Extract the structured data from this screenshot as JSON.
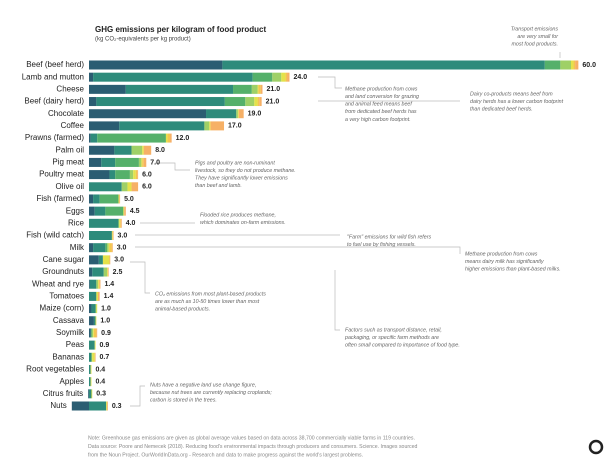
{
  "chart_data": {
    "type": "stacked-barh",
    "title": "GHG emissions per kilogram of food product",
    "subtitle": "(kg CO₂-equivalents per kg product)",
    "categories": [
      "Beef (beef herd)",
      "Lamb and mutton",
      "Cheese",
      "Beef (dairy herd)",
      "Chocolate",
      "Coffee",
      "Prawns (farmed)",
      "Palm oil",
      "Pig meat",
      "Poultry meat",
      "Olive oil",
      "Fish (farmed)",
      "Eggs",
      "Rice",
      "Fish (wild catch)",
      "Milk",
      "Cane sugar",
      "Groundnuts",
      "Wheat and rye",
      "Tomatoes",
      "Maize (corn)",
      "Cassava",
      "Soymilk",
      "Peas",
      "Bananas",
      "Root vegetables",
      "Apples",
      "Citrus fruits",
      "Nuts"
    ],
    "values": [
      60,
      24,
      21,
      21,
      19,
      17,
      12,
      8,
      7,
      6,
      6,
      5,
      4.5,
      4,
      3,
      3,
      3,
      2.5,
      1.4,
      1.4,
      1,
      1,
      0.9,
      0.9,
      0.7,
      0.4,
      0.4,
      0.3,
      0.3
    ],
    "value_labels": [
      "60.0",
      "24.0",
      "21.0",
      "21.0",
      "19.0",
      "17.0",
      "12.0",
      "8.0",
      "7.0",
      "6.0",
      "6.0",
      "5.0",
      "4.5",
      "4.0",
      "3.0",
      "3.0",
      "3.0",
      "2.5",
      "1.4",
      "1.4",
      "1.0",
      "1.0",
      "0.9",
      "0.9",
      "0.7",
      "0.4",
      "0.4",
      "0.3",
      "0.3"
    ],
    "series": [
      {
        "color": "#2b5d72",
        "values": [
          16.3,
          0.5,
          4.5,
          0.9,
          14.3,
          3.7,
          0.2,
          3.1,
          1.5,
          2.5,
          0,
          0.5,
          0.7,
          0,
          0,
          0.5,
          1.2,
          0.4,
          0.1,
          0,
          0.3,
          0.6,
          0.2,
          0,
          0,
          0,
          0,
          -0.1,
          -2.1
        ]
      },
      {
        "color": "#2e8b7b",
        "values": [
          39.4,
          19.5,
          13.1,
          15.7,
          3.7,
          10.4,
          0.8,
          2.1,
          1.7,
          0.7,
          4.0,
          0.8,
          1.3,
          3.6,
          2.8,
          1.5,
          0.5,
          1.4,
          0.8,
          0.9,
          0.5,
          0.2,
          0.1,
          0.7,
          0.3,
          0.2,
          0.2,
          0.3,
          2.1
        ]
      },
      {
        "color": "#55b06a",
        "values": [
          1.9,
          2.4,
          2.3,
          2.5,
          0,
          0,
          8.4,
          0,
          2.9,
          1.8,
          0,
          2.3,
          2.2,
          0,
          0,
          0.2,
          0,
          0,
          0,
          0,
          0,
          0,
          0,
          0,
          0,
          0,
          0,
          0,
          0
        ]
      },
      {
        "color": "#9fd067",
        "values": [
          1.3,
          1.1,
          0.7,
          1.1,
          0.2,
          0.6,
          0,
          1.3,
          0.3,
          0.4,
          0.7,
          0,
          0,
          0.1,
          0,
          0.2,
          0,
          0.4,
          0.2,
          0,
          0.1,
          0,
          0.2,
          0,
          0.1,
          0,
          0,
          0,
          0
        ]
      },
      {
        "color": "#e4e24a",
        "values": [
          0.3,
          0.5,
          0.1,
          0.4,
          0.1,
          0.1,
          0.2,
          0.2,
          0.1,
          0.3,
          0.5,
          0.1,
          0.1,
          0.1,
          0.1,
          0.1,
          0.8,
          0.1,
          0.1,
          0.2,
          0.1,
          0.1,
          0.1,
          0.1,
          0.3,
          0.1,
          0.1,
          0.1,
          0.1
        ]
      },
      {
        "color": "#f3c64f",
        "values": [
          0.2,
          0.2,
          0.3,
          0.2,
          0,
          0.1,
          0.3,
          0,
          0.2,
          0.2,
          0,
          0,
          0,
          0.1,
          0,
          0.3,
          0,
          0,
          0.1,
          0,
          0,
          0,
          0.3,
          0,
          0,
          0,
          0,
          0,
          0
        ]
      },
      {
        "color": "#f6b066",
        "values": [
          0.4,
          0.3,
          0.2,
          0.3,
          0.6,
          1.6,
          0.2,
          0.9,
          0.3,
          0.1,
          0.8,
          0.1,
          0.2,
          0.1,
          0.1,
          0.1,
          0.1,
          0.1,
          0.1,
          0.2,
          0,
          0,
          0.1,
          0,
          0.1,
          0,
          0,
          0,
          0.1
        ]
      }
    ],
    "annotations": [
      [
        "Transport emissions",
        "are very small for",
        "most food products."
      ],
      [
        "Methane production from cows",
        "and land conversion for grazing",
        "and animal feed means beef",
        "from dedicated beef herds has",
        "a very high carbon footprint."
      ],
      [
        "Dairy co-products means beef from",
        "dairy herds has a lower carbon footprint",
        "than dedicated beef herds."
      ],
      [
        "Pigs and poultry are non-ruminant",
        "livestock, so they do not produce methane.",
        "They have significantly lower emissions",
        "than beef and lamb."
      ],
      [
        "Flooded rice produces methane,",
        "which dominates on-farm emissions."
      ],
      [
        "\"Farm\" emissions for wild fish refers",
        "to fuel use by fishing vessels."
      ],
      [
        "Methane production from cows",
        "means dairy milk has significantly",
        "higher emissions than plant-based milks."
      ],
      [
        "CO₂ emissions from most plant-based products",
        "are as much as 10-50 times lower than most",
        "animal-based products."
      ],
      [
        "Factors such as transport distance, retail,",
        "packaging, or specific farm methods are",
        "often small compared to importance of food type."
      ],
      [
        "Nuts have a negative land use change figure,",
        "because nut trees are currently replacing croplands;",
        "carbon is stored in the trees."
      ]
    ],
    "notes": [
      "Note: Greenhouse gas emissions are given as global average values based on data across 38,700 commercially viable farms in 119 countries.",
      "Data source: Poore and Nemecek (2018). Reducing food's environmental impacts through producers and consumers. Science. Images sourced",
      "from the Noun Project. OurWorldInData.org - Research and data to make progress against the world's largest problems."
    ]
  }
}
